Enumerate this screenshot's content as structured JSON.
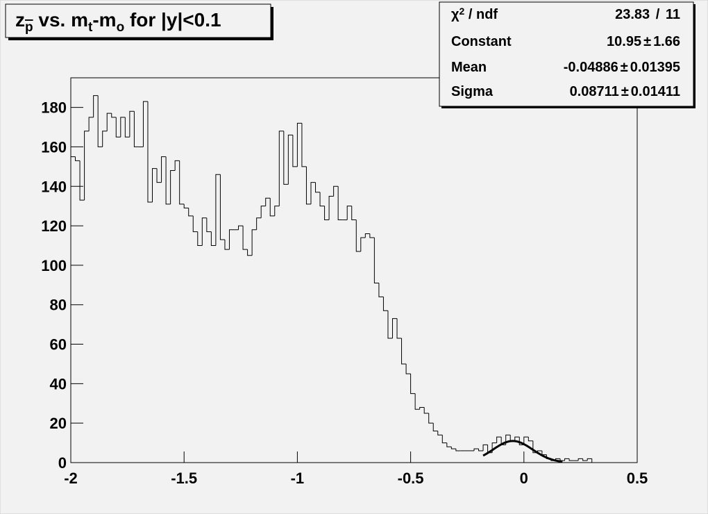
{
  "chart_data": {
    "type": "histogram",
    "title_parts": [
      {
        "text": "z"
      },
      {
        "text": "p",
        "sub": true,
        "overline": true
      },
      {
        "text": " vs. m"
      },
      {
        "text": "t",
        "sub": true
      },
      {
        "text": "-m"
      },
      {
        "text": "o",
        "sub": true
      },
      {
        "text": " for |y|<0.1"
      }
    ],
    "bins": [
      -2,
      -1.98,
      -1.96,
      -1.94,
      -1.92,
      -1.9,
      -1.88,
      -1.86,
      -1.84,
      -1.82,
      -1.8,
      -1.78,
      -1.76,
      -1.74,
      -1.72,
      -1.7,
      -1.68,
      -1.66,
      -1.64,
      -1.62,
      -1.6,
      -1.58,
      -1.56,
      -1.54,
      -1.52,
      -1.5,
      -1.48,
      -1.46,
      -1.44,
      -1.42,
      -1.4,
      -1.38,
      -1.36,
      -1.34,
      -1.32,
      -1.3,
      -1.28,
      -1.26,
      -1.24,
      -1.22,
      -1.2,
      -1.18,
      -1.16,
      -1.14,
      -1.12,
      -1.1,
      -1.08,
      -1.06,
      -1.04,
      -1.02,
      -1,
      -0.98,
      -0.96,
      -0.94,
      -0.92,
      -0.9,
      -0.88,
      -0.86,
      -0.84,
      -0.82,
      -0.8,
      -0.78,
      -0.76,
      -0.74,
      -0.72,
      -0.7,
      -0.68,
      -0.66,
      -0.64,
      -0.62,
      -0.6,
      -0.58,
      -0.56,
      -0.54,
      -0.52,
      -0.5,
      -0.48,
      -0.46,
      -0.44,
      -0.42,
      -0.4,
      -0.38,
      -0.36,
      -0.34,
      -0.32,
      -0.3,
      -0.28,
      -0.26,
      -0.24,
      -0.22,
      -0.2,
      -0.18,
      -0.16,
      -0.14,
      -0.12,
      -0.1,
      -0.08,
      -0.06,
      -0.04,
      -0.02,
      0,
      0.02,
      0.04,
      0.06,
      0.08,
      0.1,
      0.12,
      0.14,
      0.16,
      0.18,
      0.2,
      0.22,
      0.24,
      0.26,
      0.28,
      0.3
    ],
    "values": [
      155,
      153,
      133,
      168,
      175,
      186,
      160,
      168,
      177,
      175,
      165,
      175,
      165,
      178,
      160,
      160,
      183,
      132,
      149,
      142,
      155,
      131,
      148,
      153,
      131,
      129,
      125,
      117,
      110,
      124,
      117,
      110,
      146,
      113,
      108,
      118,
      118,
      120,
      108,
      105,
      118,
      124,
      130,
      134,
      125,
      130,
      168,
      141,
      166,
      150,
      172,
      150,
      131,
      142,
      137,
      130,
      123,
      135,
      140,
      123,
      123,
      130,
      123,
      107,
      114,
      116,
      114,
      91,
      84,
      77,
      63,
      73,
      63,
      50,
      45,
      35,
      27,
      28,
      25,
      20,
      16,
      14,
      10,
      8,
      7,
      6,
      6,
      6,
      6,
      7,
      6,
      9,
      5,
      10,
      13,
      9,
      14,
      11,
      13,
      9,
      13,
      11,
      5,
      6,
      4,
      2,
      1,
      2,
      1,
      2,
      1,
      1,
      2,
      1,
      2
    ],
    "color": "#000000",
    "xlim": [
      -2,
      0.5
    ],
    "ylim": [
      0,
      195
    ],
    "xticks": [
      -2,
      -1.5,
      -1,
      -0.5,
      0,
      0.5
    ],
    "yticks": [
      0,
      20,
      40,
      60,
      80,
      100,
      120,
      140,
      160,
      180
    ],
    "fit_xlim": [
      -0.18,
      0.17
    ],
    "stats": {
      "rows": [
        {
          "label_parts": [
            {
              "text": "χ"
            },
            {
              "text": "2",
              "sup": true
            },
            {
              "text": " / ndf"
            }
          ],
          "value_parts": [
            23.83,
            " / ",
            11
          ]
        },
        {
          "label_parts": [
            {
              "text": "Constant"
            }
          ],
          "value_parts": [
            10.95,
            "±",
            1.66
          ]
        },
        {
          "label_parts": [
            {
              "text": "Mean"
            }
          ],
          "value_parts": [
            -0.04886,
            "±",
            0.01395
          ]
        },
        {
          "label_parts": [
            {
              "text": "Sigma"
            }
          ],
          "value_parts": [
            0.08711,
            "±",
            0.01411
          ]
        }
      ]
    }
  }
}
